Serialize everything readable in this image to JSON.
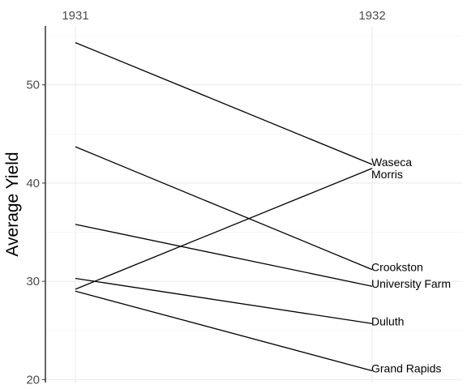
{
  "chart_data": {
    "type": "line",
    "chart_style": "slopegraph",
    "ylabel": "Average Yield",
    "x_categories": [
      "1931",
      "1932"
    ],
    "y_ticks": [
      20,
      30,
      40,
      50
    ],
    "ylim": [
      19.7,
      56
    ],
    "grid": true,
    "legend": "none",
    "series": [
      {
        "name": "Waseca",
        "values": [
          54.3,
          41.9
        ]
      },
      {
        "name": "Crookston",
        "values": [
          43.7,
          31.2
        ]
      },
      {
        "name": "University Farm",
        "values": [
          35.8,
          29.5
        ]
      },
      {
        "name": "Duluth",
        "values": [
          30.3,
          25.7
        ]
      },
      {
        "name": "Morris",
        "values": [
          29.2,
          41.5
        ]
      },
      {
        "name": "Grand Rapids",
        "values": [
          29.0,
          20.9
        ]
      }
    ]
  }
}
